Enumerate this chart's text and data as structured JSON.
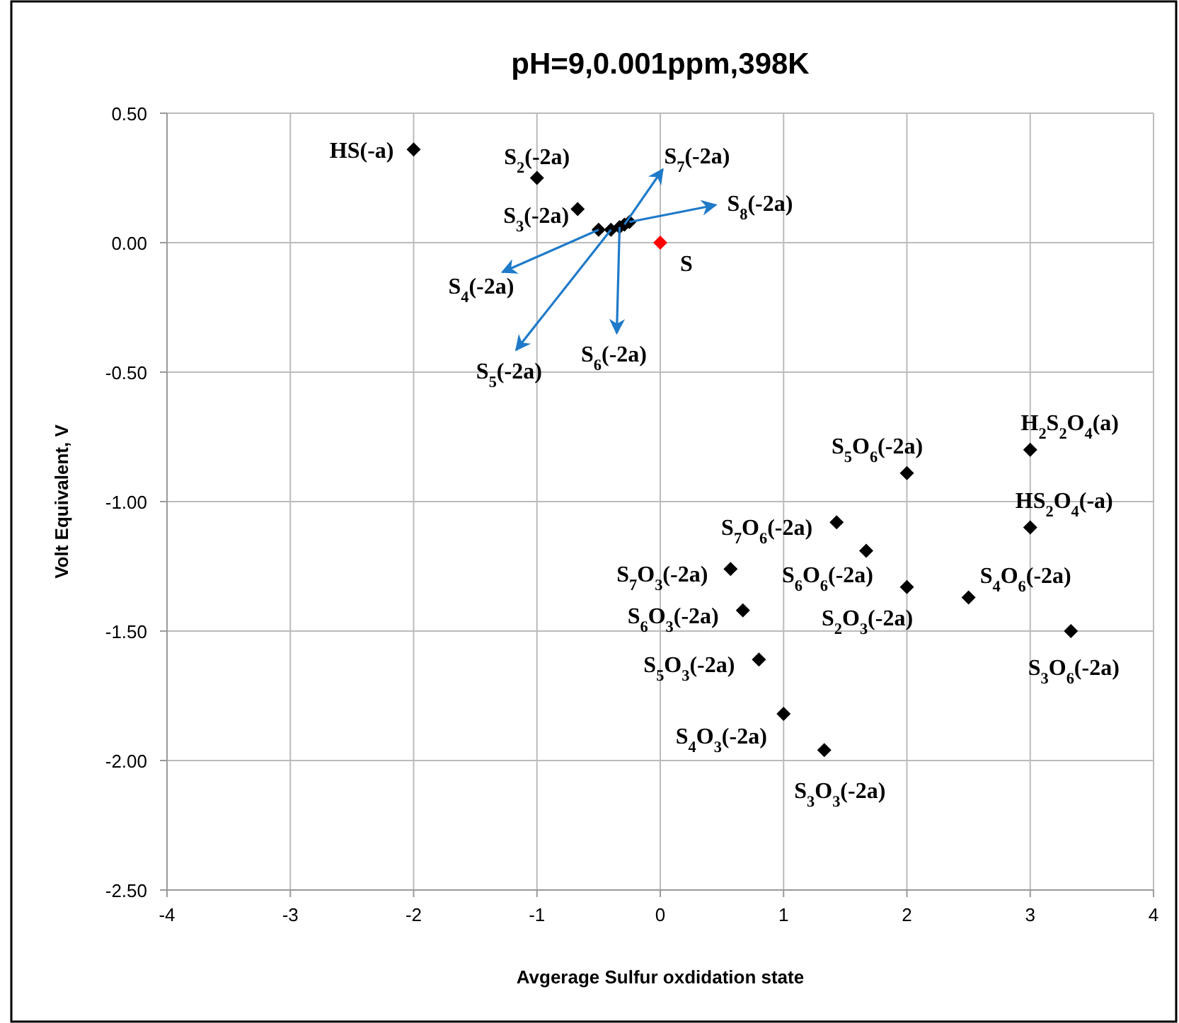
{
  "chart_data": {
    "type": "scatter",
    "title": "pH=9,0.001ppm,398K",
    "xlabel": "Avgerage Sulfur oxdidation state",
    "ylabel": "Volt Equivalent, V",
    "xlim": [
      -4,
      4
    ],
    "xticks": [
      -4,
      -3,
      -2,
      -1,
      0,
      1,
      2,
      3,
      4
    ],
    "ylim": [
      -2.5,
      0.5
    ],
    "yticks": [
      {
        "value": -2.5,
        "label": "-2.50"
      },
      {
        "value": -2,
        "label": "-2.00"
      },
      {
        "value": -1.5,
        "label": "-1.50"
      },
      {
        "value": -1,
        "label": "-1.00"
      },
      {
        "value": -0.5,
        "label": "-0.50"
      },
      {
        "value": 0,
        "label": "0.00"
      },
      {
        "value": 0.5,
        "label": "0.50"
      }
    ],
    "grid": true,
    "marker": "diamond",
    "series": [
      {
        "color": "#000000",
        "x": [
          -2,
          -1,
          -0.67,
          -0.5,
          -0.4,
          -0.33,
          -0.29,
          -0.25,
          3,
          2,
          3,
          1.43,
          1.67,
          0.57,
          2,
          2.5,
          0.67,
          3.33,
          0.8,
          1,
          1.33
        ],
        "values": [
          0.36,
          0.25,
          0.13,
          0.05,
          0.05,
          0.06,
          0.07,
          0.08,
          -0.8,
          -0.89,
          -1.1,
          -1.08,
          -1.19,
          -1.26,
          -1.33,
          -1.37,
          -1.42,
          -1.5,
          -1.61,
          -1.82,
          -1.96
        ]
      },
      {
        "color": "#ff0000",
        "x": [
          0
        ],
        "values": [
          0
        ]
      }
    ],
    "annotations": [
      {
        "text": "HS(-a)",
        "x": -2,
        "y": 0.36
      },
      {
        "text": "S$_{2}$(-2a)",
        "x": -1,
        "y": 0.25
      },
      {
        "text": "S$_{3}$(-2a)",
        "x": -0.67,
        "y": 0.13
      },
      {
        "text": "S$_{4}$(-2a)",
        "x": -0.5,
        "y": 0.05
      },
      {
        "text": "S$_{5}$(-2a)",
        "x": -0.4,
        "y": 0.05
      },
      {
        "text": "S$_{6}$(-2a)",
        "x": -0.33,
        "y": 0.06
      },
      {
        "text": "S$_{7}$(-2a)",
        "x": -0.29,
        "y": 0.07
      },
      {
        "text": "S$_{8}$(-2a)",
        "x": -0.25,
        "y": 0.08
      },
      {
        "text": "S",
        "x": 0,
        "y": 0
      },
      {
        "text": "H$_{2}$S$_{2}$O$_{4}$(a)",
        "x": 3,
        "y": -0.8
      },
      {
        "text": "S$_{5}$O$_{6}$(-2a)",
        "x": 2,
        "y": -0.89
      },
      {
        "text": "HS$_{2}$O$_{4}$(-a)",
        "x": 3,
        "y": -1.1
      },
      {
        "text": "S$_{7}$O$_{6}$(-2a)",
        "x": 1.43,
        "y": -1.08
      },
      {
        "text": "S$_{6}$O$_{6}$(-2a)",
        "x": 1.67,
        "y": -1.19
      },
      {
        "text": "S$_{7}$O$_{3}$(-2a)",
        "x": 0.57,
        "y": -1.26
      },
      {
        "text": "S$_{2}$O$_{3}$(-2a)",
        "x": 2,
        "y": -1.33
      },
      {
        "text": "S$_{4}$O$_{6}$(-2a)",
        "x": 2.5,
        "y": -1.37
      },
      {
        "text": "S$_{6}$O$_{3}$(-2a)",
        "x": 0.67,
        "y": -1.42
      },
      {
        "text": "S$_{3}$O$_{6}$(-2a)",
        "x": 3.33,
        "y": -1.5
      },
      {
        "text": "S$_{5}$O$_{3}$(-2a)",
        "x": 0.8,
        "y": -1.61
      },
      {
        "text": "S$_{4}$O$_{3}$(-2a)",
        "x": 1,
        "y": -1.82
      },
      {
        "text": "S$_{3}$O$_{3}$(-2a)",
        "x": 1.33,
        "y": -1.96
      }
    ]
  }
}
